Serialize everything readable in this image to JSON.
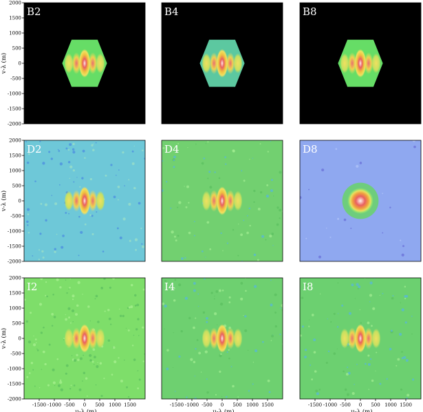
{
  "chart_data": {
    "type": "heatmap",
    "xlabel": "u-λ (m)",
    "ylabel": "v-λ (m)",
    "xlim": [
      -2000,
      2000
    ],
    "ylim": [
      -2000,
      2000
    ],
    "xticks": [
      -1500,
      -1000,
      -500,
      0,
      500,
      1000,
      1500
    ],
    "yticks": [
      2000,
      1500,
      1000,
      500,
      0,
      -500,
      -1000,
      -1500,
      -2000
    ],
    "xtick_labels": [
      "-1500",
      "-1000",
      "-500",
      "0",
      "500",
      "1000",
      "1500"
    ],
    "ytick_labels": [
      "2000",
      "1500",
      "1000",
      "500",
      "0",
      "-500",
      "-1000",
      "-1500",
      "-2000"
    ],
    "colors": {
      "background": "#000000",
      "low": "#7fb0f0",
      "mid": "#66dd66",
      "high_yellow": "#f0e040",
      "peak_red": "#e05050",
      "core": "#ffd0d0"
    },
    "panels": [
      {
        "id": "B2",
        "label": "B2",
        "row": 0,
        "col": 0,
        "coverage": "bounded",
        "extent": 780,
        "base_color": "#66dd66",
        "core": "elongated",
        "texture": "smooth"
      },
      {
        "id": "B4",
        "label": "B4",
        "row": 0,
        "col": 1,
        "coverage": "bounded",
        "extent": 780,
        "base_color": "#5cc8a0",
        "core": "elongated",
        "texture": "smooth"
      },
      {
        "id": "B8",
        "label": "B8",
        "row": 0,
        "col": 2,
        "coverage": "bounded",
        "extent": 780,
        "base_color": "#66dd66",
        "core": "elongated",
        "texture": "smooth"
      },
      {
        "id": "D2",
        "label": "D2",
        "row": 1,
        "col": 0,
        "coverage": "rotated-square",
        "extent": 2600,
        "base_color": "#6ec8d8",
        "core": "elongated",
        "texture": "mottled-blue"
      },
      {
        "id": "D4",
        "label": "D4",
        "row": 1,
        "col": 1,
        "coverage": "rotated-square",
        "extent": 2600,
        "base_color": "#72d070",
        "core": "elongated",
        "texture": "mottled"
      },
      {
        "id": "D8",
        "label": "D8",
        "row": 1,
        "col": 2,
        "coverage": "rotated-square",
        "extent": 2650,
        "base_color": "#8fa8f0",
        "core": "circular",
        "texture": "smooth-purple"
      },
      {
        "id": "I2",
        "label": "I2",
        "row": 2,
        "col": 0,
        "coverage": "rotated-square",
        "extent": 2600,
        "base_color": "#7ede6a",
        "core": "elongated",
        "texture": "dense"
      },
      {
        "id": "I4",
        "label": "I4",
        "row": 2,
        "col": 1,
        "coverage": "rotated-square",
        "extent": 2600,
        "base_color": "#6ed070",
        "core": "elongated",
        "texture": "mottled"
      },
      {
        "id": "I8",
        "label": "I8",
        "row": 2,
        "col": 2,
        "coverage": "rotated-square",
        "extent": 2600,
        "base_color": "#6cd070",
        "core": "elongated",
        "texture": "mottled"
      }
    ]
  }
}
